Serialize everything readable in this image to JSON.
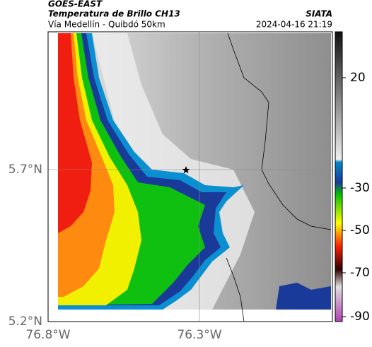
{
  "header": {
    "source": "GOES-EAST",
    "title": "Temperatura de Brillo CH13",
    "subtitle": "Vía Medellín - Quibdó 50km",
    "org": "SIATA",
    "timestamp": "2024-04-16 21:19"
  },
  "map": {
    "lat_labels": [
      "5.7°N",
      "5.2°N"
    ],
    "lon_labels": [
      "76.8°W",
      "76.3°W"
    ],
    "colorbar": {
      "ticks": [
        20,
        -30,
        -50,
        -70,
        -90
      ]
    }
  }
}
